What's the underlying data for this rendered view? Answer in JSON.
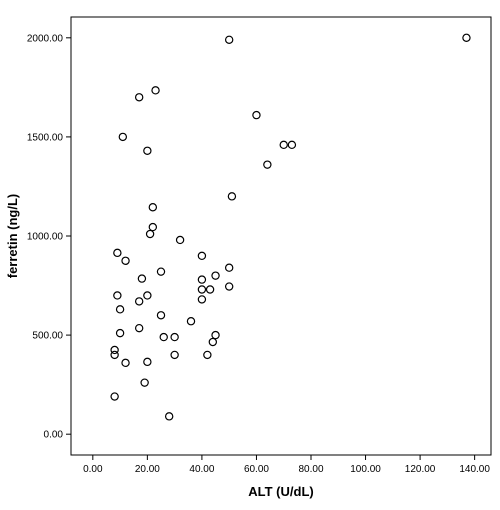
{
  "chart_data": {
    "type": "scatter",
    "xlabel": "ALT (U/dL)",
    "ylabel": "ferretin (ng/L)",
    "xlim": [
      -8,
      146
    ],
    "ylim": [
      -105,
      2105
    ],
    "x_ticks": [
      0,
      20,
      40,
      60,
      80,
      100,
      120,
      140
    ],
    "x_tick_labels": [
      "0.00",
      "20.00",
      "40.00",
      "60.00",
      "80.00",
      "100.00",
      "120.00",
      "140.00"
    ],
    "y_ticks": [
      0,
      500,
      1000,
      1500,
      2000
    ],
    "y_tick_labels": [
      "0.00",
      "500.00",
      "1000.00",
      "1500.00",
      "2000.00"
    ],
    "grid": false,
    "marker": "open-circle",
    "points": [
      {
        "x": 50,
        "y": 1990
      },
      {
        "x": 137,
        "y": 2000
      },
      {
        "x": 23,
        "y": 1735
      },
      {
        "x": 17,
        "y": 1700
      },
      {
        "x": 60,
        "y": 1610
      },
      {
        "x": 11,
        "y": 1500
      },
      {
        "x": 70,
        "y": 1460
      },
      {
        "x": 73,
        "y": 1460
      },
      {
        "x": 20,
        "y": 1430
      },
      {
        "x": 64,
        "y": 1360
      },
      {
        "x": 51,
        "y": 1200
      },
      {
        "x": 22,
        "y": 1145
      },
      {
        "x": 22,
        "y": 1045
      },
      {
        "x": 21,
        "y": 1010
      },
      {
        "x": 32,
        "y": 980
      },
      {
        "x": 9,
        "y": 915
      },
      {
        "x": 40,
        "y": 900
      },
      {
        "x": 12,
        "y": 875
      },
      {
        "x": 50,
        "y": 840
      },
      {
        "x": 25,
        "y": 820
      },
      {
        "x": 45,
        "y": 800
      },
      {
        "x": 18,
        "y": 785
      },
      {
        "x": 40,
        "y": 780
      },
      {
        "x": 50,
        "y": 745
      },
      {
        "x": 40,
        "y": 730
      },
      {
        "x": 43,
        "y": 730
      },
      {
        "x": 9,
        "y": 700
      },
      {
        "x": 20,
        "y": 700
      },
      {
        "x": 40,
        "y": 680
      },
      {
        "x": 17,
        "y": 670
      },
      {
        "x": 10,
        "y": 630
      },
      {
        "x": 25,
        "y": 600
      },
      {
        "x": 36,
        "y": 570
      },
      {
        "x": 17,
        "y": 535
      },
      {
        "x": 10,
        "y": 510
      },
      {
        "x": 45,
        "y": 500
      },
      {
        "x": 26,
        "y": 490
      },
      {
        "x": 30,
        "y": 490
      },
      {
        "x": 44,
        "y": 465
      },
      {
        "x": 8,
        "y": 425
      },
      {
        "x": 8,
        "y": 400
      },
      {
        "x": 30,
        "y": 400
      },
      {
        "x": 42,
        "y": 400
      },
      {
        "x": 20,
        "y": 365
      },
      {
        "x": 12,
        "y": 360
      },
      {
        "x": 19,
        "y": 260
      },
      {
        "x": 8,
        "y": 190
      },
      {
        "x": 28,
        "y": 90
      }
    ]
  }
}
